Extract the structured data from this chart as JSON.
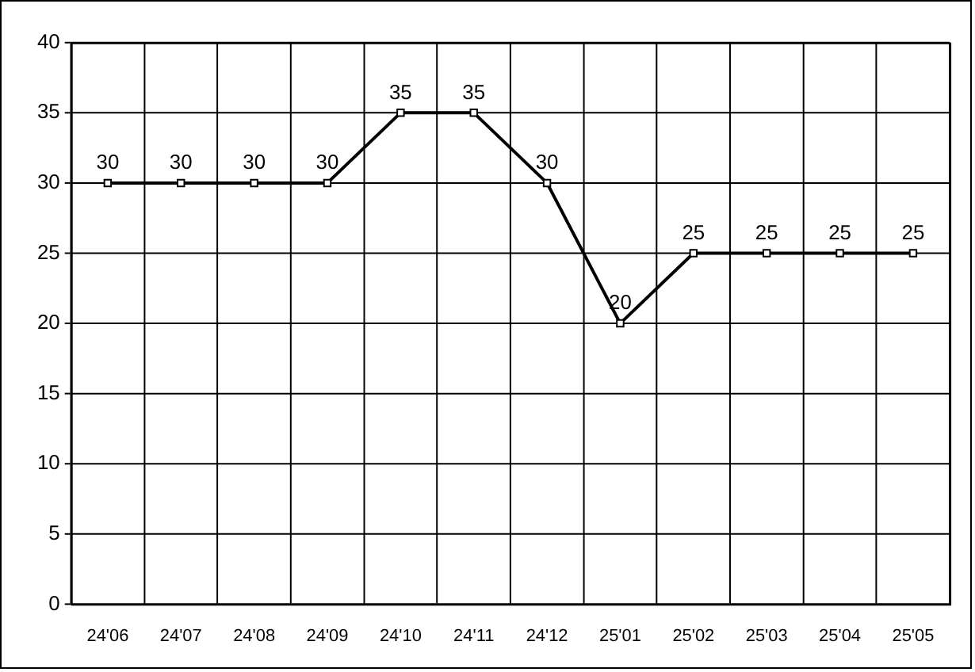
{
  "chart_data": {
    "type": "line",
    "categories": [
      "24'06",
      "24'07",
      "24'08",
      "24'09",
      "24'10",
      "24'11",
      "24'12",
      "25'01",
      "25'02",
      "25'03",
      "25'04",
      "25'05"
    ],
    "series": [
      {
        "color": "#000000",
        "values": [
          30,
          30,
          30,
          30,
          35,
          35,
          30,
          20,
          25,
          25,
          25,
          25
        ]
      }
    ],
    "ylim": [
      0,
      40
    ],
    "yticks": [
      0,
      5,
      10,
      15,
      20,
      25,
      30,
      35,
      40
    ],
    "grid": true,
    "legend": false,
    "marker": "square",
    "line_style": "solid",
    "data_labels": true
  }
}
